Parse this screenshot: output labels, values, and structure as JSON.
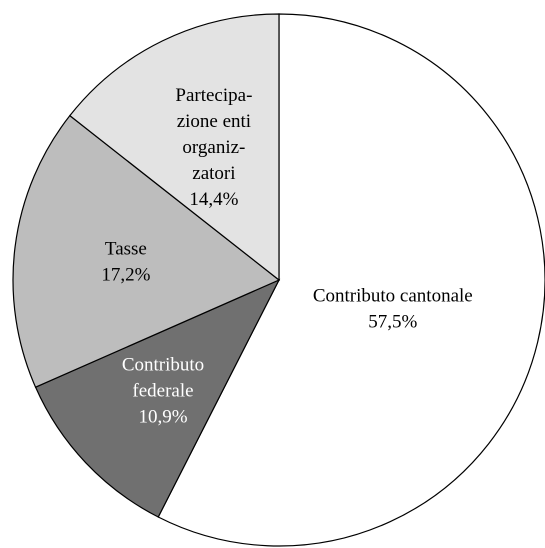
{
  "chart_data": {
    "type": "pie",
    "slices": [
      {
        "lines": [
          "Contributo cantonale"
        ],
        "value_label": "57,5%",
        "value": 57.5,
        "color": "#ffffff",
        "text_color": "#000000"
      },
      {
        "lines": [
          "Contributo",
          "federale"
        ],
        "value_label": "10,9%",
        "value": 10.9,
        "color": "#707070",
        "text_color": "#ffffff"
      },
      {
        "lines": [
          "Tasse"
        ],
        "value_label": "17,2%",
        "value": 17.2,
        "color": "#bdbdbd",
        "text_color": "#000000"
      },
      {
        "lines": [
          "Partecipa-",
          "zione enti",
          "organiz-",
          "zatori"
        ],
        "value_label": "14,4%",
        "value": 14.4,
        "color": "#e3e3e3",
        "text_color": "#000000"
      }
    ],
    "start_angle": "12 o'clock",
    "direction": "clockwise",
    "legend": "none",
    "border_color": "#000000"
  }
}
